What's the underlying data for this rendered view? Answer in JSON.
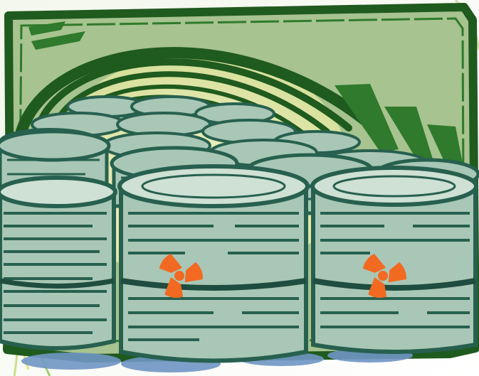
{
  "image": {
    "subject": "clip-art",
    "colors": {
      "frame_dark": "#1f5a1e",
      "frame_mid": "#2f7a2c",
      "backdrop": "#a7c38f",
      "tunnel_light": "#e9ecb4",
      "barrel_fill": "#a9c7b6",
      "barrel_shade": "#27604f",
      "barrel_highlight": "#d9e8dd",
      "hazard": "#f26a21",
      "ground": "#6f96c4",
      "swirl_yellow": "#e6e37a",
      "swirl_green": "#9fd06a"
    },
    "icons": [
      "radiation-icon",
      "radiation-icon"
    ]
  }
}
